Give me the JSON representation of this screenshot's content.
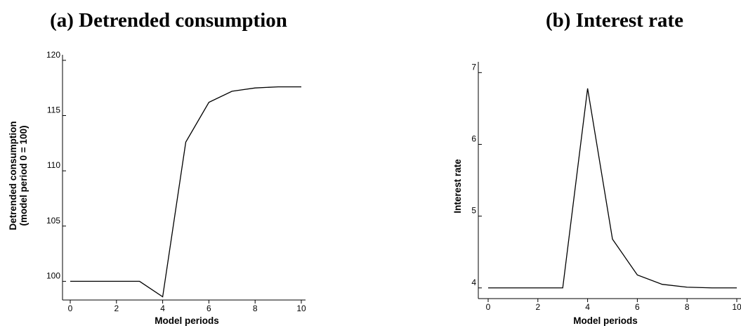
{
  "chart_data": [
    {
      "type": "line",
      "title": "(a) Detrended consumption",
      "xlabel": "Model periods",
      "ylabel_lines": [
        "Detrended consumption",
        "(model period 0 = 100)"
      ],
      "xlim": [
        0,
        10
      ],
      "ylim": [
        98.5,
        120.5
      ],
      "xticks": [
        0,
        2,
        4,
        6,
        8,
        10
      ],
      "yticks": [
        100,
        105,
        110,
        115,
        120
      ],
      "grid": false,
      "legend": "none",
      "x": [
        0,
        1,
        2,
        3,
        4,
        5,
        6,
        7,
        8,
        9,
        10
      ],
      "values": [
        100,
        100,
        100,
        100,
        98.6,
        112.6,
        116.2,
        117.2,
        117.5,
        117.6,
        117.6
      ]
    },
    {
      "type": "line",
      "title": "(b) Interest rate",
      "xlabel": "Model periods",
      "ylabel_lines": [
        "Interest rate"
      ],
      "xlim": [
        0,
        10
      ],
      "ylim": [
        3.9,
        7.15
      ],
      "xticks": [
        0,
        2,
        4,
        6,
        8,
        10
      ],
      "yticks": [
        4,
        5,
        6,
        7
      ],
      "grid": false,
      "legend": "none",
      "x": [
        0,
        1,
        2,
        3,
        4,
        5,
        6,
        7,
        8,
        9,
        10
      ],
      "values": [
        4.0,
        4.0,
        4.0,
        4.0,
        6.78,
        4.68,
        4.18,
        4.05,
        4.01,
        4.0,
        4.0
      ]
    }
  ]
}
